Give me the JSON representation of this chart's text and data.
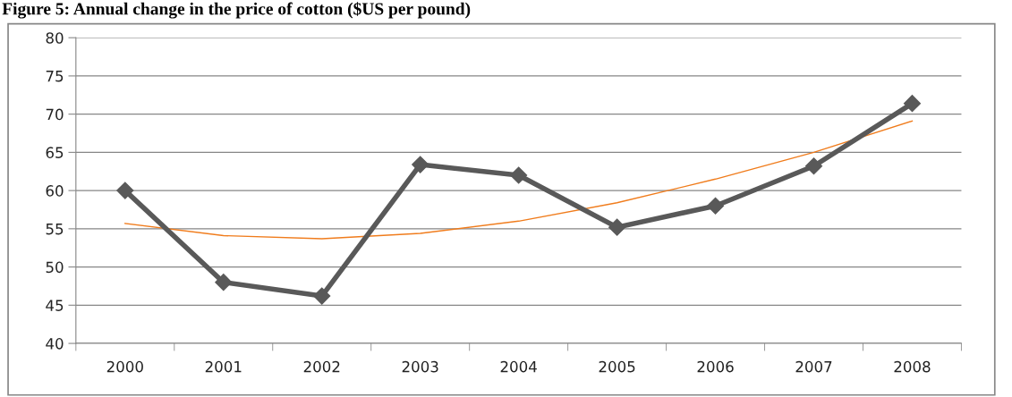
{
  "chart_data": {
    "type": "line",
    "title": "Figure 5: Annual change in the price of cotton ($US per pound)",
    "categories": [
      "2000",
      "2001",
      "2002",
      "2003",
      "2004",
      "2005",
      "2006",
      "2007",
      "2008"
    ],
    "series": [
      {
        "color": "#595959",
        "marker": "diamond",
        "values": [
          60,
          48,
          46.2,
          63.4,
          62,
          55.2,
          58,
          63.2,
          71.4
        ]
      },
      {
        "color": "#f07c1c",
        "marker": "none",
        "values": [
          55.7,
          54.1,
          53.7,
          54.4,
          56,
          58.4,
          61.5,
          65,
          69.1
        ]
      }
    ],
    "ylim": [
      40,
      80
    ],
    "yticks": [
      40,
      45,
      50,
      55,
      60,
      65,
      70,
      75,
      80
    ],
    "grid": "y",
    "legend": false
  }
}
